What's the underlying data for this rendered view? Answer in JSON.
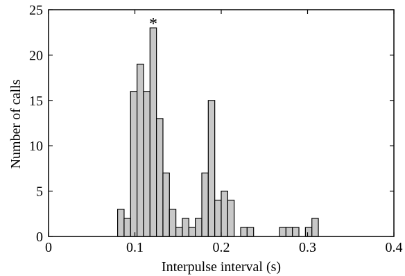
{
  "chart_data": {
    "type": "bar",
    "title": "",
    "xlabel": "Interpulse interval (s)",
    "ylabel": "Number of calls",
    "xlim": [
      0,
      0.4
    ],
    "ylim": [
      0,
      25
    ],
    "xticks": [
      0,
      0.1,
      0.2,
      0.3,
      0.4
    ],
    "xtick_labels": [
      "0",
      "0.1",
      "0.2",
      "0.3",
      "0.4"
    ],
    "yticks": [
      0,
      5,
      10,
      15,
      20,
      25
    ],
    "ytick_labels": [
      "0",
      "5",
      "10",
      "15",
      "20",
      "25"
    ],
    "grid": false,
    "bin_width": 0.0075,
    "bins": [
      {
        "x": 0.08,
        "value": 3
      },
      {
        "x": 0.0875,
        "value": 2
      },
      {
        "x": 0.095,
        "value": 16
      },
      {
        "x": 0.1025,
        "value": 19
      },
      {
        "x": 0.11,
        "value": 16
      },
      {
        "x": 0.1175,
        "value": 23
      },
      {
        "x": 0.125,
        "value": 13
      },
      {
        "x": 0.1325,
        "value": 7
      },
      {
        "x": 0.14,
        "value": 3
      },
      {
        "x": 0.1475,
        "value": 1
      },
      {
        "x": 0.155,
        "value": 2
      },
      {
        "x": 0.1625,
        "value": 1
      },
      {
        "x": 0.17,
        "value": 2
      },
      {
        "x": 0.1775,
        "value": 7
      },
      {
        "x": 0.185,
        "value": 15
      },
      {
        "x": 0.1925,
        "value": 4
      },
      {
        "x": 0.2,
        "value": 5
      },
      {
        "x": 0.2075,
        "value": 4
      },
      {
        "x": 0.2225,
        "value": 1
      },
      {
        "x": 0.23,
        "value": 1
      },
      {
        "x": 0.2675,
        "value": 1
      },
      {
        "x": 0.275,
        "value": 1
      },
      {
        "x": 0.2825,
        "value": 1
      },
      {
        "x": 0.2975,
        "value": 1
      },
      {
        "x": 0.305,
        "value": 2
      }
    ],
    "annotations": [
      {
        "text": "*",
        "x": 0.1175,
        "y": 23
      }
    ],
    "colors": {
      "bar_fill": "#c8c8c8",
      "bar_edge": "#000000",
      "axes": "#000000"
    }
  }
}
